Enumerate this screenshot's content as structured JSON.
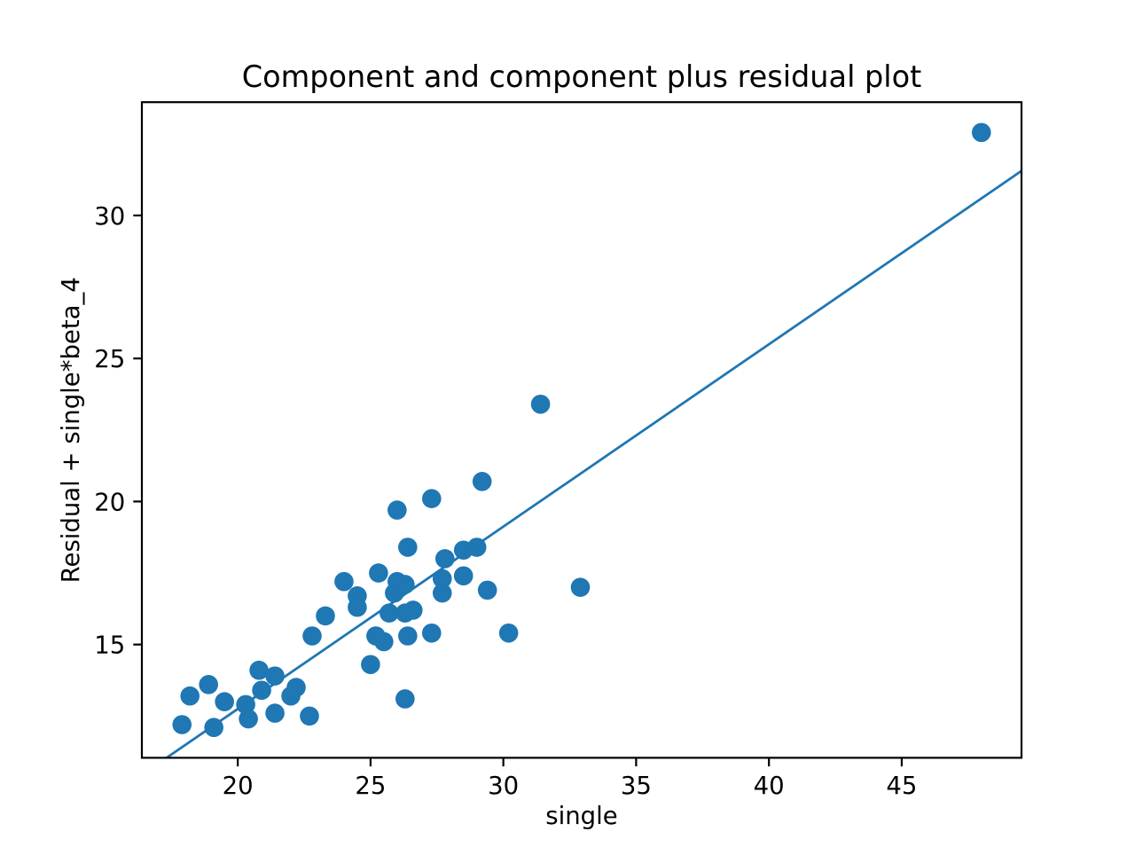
{
  "figure": {
    "background": "#ffffff"
  },
  "chart_data": {
    "type": "scatter",
    "title": "Component and component plus residual plot",
    "xlabel": "single",
    "ylabel": "Residual + single*beta_4",
    "xlim": [
      16.39,
      49.51
    ],
    "ylim": [
      11.04,
      33.96
    ],
    "xticks": [
      20,
      25,
      30,
      35,
      40,
      45
    ],
    "yticks": [
      15,
      20,
      25,
      30
    ],
    "grid": false,
    "legend": "none",
    "marker_color": "#1f77b4",
    "line_color": "#1f77b4",
    "axis_color": "#000000",
    "points": [
      [
        17.9,
        12.2
      ],
      [
        18.2,
        13.2
      ],
      [
        18.9,
        13.6
      ],
      [
        19.1,
        12.1
      ],
      [
        19.5,
        13.0
      ],
      [
        20.3,
        12.9
      ],
      [
        20.4,
        12.4
      ],
      [
        20.8,
        14.1
      ],
      [
        20.9,
        13.4
      ],
      [
        21.4,
        13.9
      ],
      [
        21.4,
        12.6
      ],
      [
        22.0,
        13.2
      ],
      [
        22.2,
        13.5
      ],
      [
        22.7,
        12.5
      ],
      [
        22.8,
        15.3
      ],
      [
        23.3,
        16.0
      ],
      [
        24.0,
        17.2
      ],
      [
        24.5,
        16.7
      ],
      [
        24.5,
        16.3
      ],
      [
        25.0,
        14.3
      ],
      [
        25.2,
        15.3
      ],
      [
        25.5,
        15.1
      ],
      [
        25.3,
        17.5
      ],
      [
        25.7,
        16.1
      ],
      [
        25.9,
        16.8
      ],
      [
        26.0,
        17.2
      ],
      [
        26.3,
        17.1
      ],
      [
        26.3,
        16.1
      ],
      [
        26.6,
        16.2
      ],
      [
        26.4,
        15.3
      ],
      [
        26.3,
        13.1
      ],
      [
        26.0,
        19.7
      ],
      [
        26.4,
        18.4
      ],
      [
        27.3,
        20.1
      ],
      [
        27.8,
        18.0
      ],
      [
        27.7,
        17.3
      ],
      [
        27.7,
        16.8
      ],
      [
        27.3,
        15.4
      ],
      [
        28.5,
        18.3
      ],
      [
        29.0,
        18.4
      ],
      [
        28.5,
        17.4
      ],
      [
        29.2,
        20.7
      ],
      [
        29.4,
        16.9
      ],
      [
        30.2,
        15.4
      ],
      [
        31.4,
        23.4
      ],
      [
        32.9,
        17.0
      ],
      [
        48.0,
        32.9
      ]
    ],
    "fit_line": {
      "slope": 0.6374,
      "intercept": 0.0
    }
  }
}
